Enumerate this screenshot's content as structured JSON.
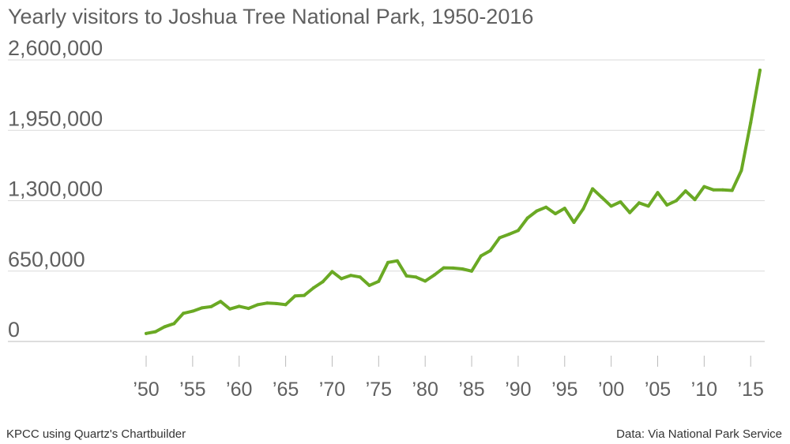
{
  "chart_data": {
    "type": "line",
    "title": "Yearly visitors to Joshua Tree National Park, 1950-2016",
    "xlabel": "",
    "ylabel": "",
    "ylim": [
      0,
      2600000
    ],
    "yticks": [
      {
        "value": 0,
        "label": "0"
      },
      {
        "value": 650000,
        "label": "650,000"
      },
      {
        "value": 1300000,
        "label": "1,300,000"
      },
      {
        "value": 1950000,
        "label": "1,950,000"
      },
      {
        "value": 2600000,
        "label": "2,600,000"
      }
    ],
    "xlim": [
      1950,
      2016
    ],
    "xticks": [
      {
        "value": 1950,
        "label": "’50"
      },
      {
        "value": 1955,
        "label": "’55"
      },
      {
        "value": 1960,
        "label": "’60"
      },
      {
        "value": 1965,
        "label": "’65"
      },
      {
        "value": 1970,
        "label": "’70"
      },
      {
        "value": 1975,
        "label": "’75"
      },
      {
        "value": 1980,
        "label": "’80"
      },
      {
        "value": 1985,
        "label": "’85"
      },
      {
        "value": 1990,
        "label": "’90"
      },
      {
        "value": 1995,
        "label": "’95"
      },
      {
        "value": 2000,
        "label": "’00"
      },
      {
        "value": 2005,
        "label": "’05"
      },
      {
        "value": 2010,
        "label": "’10"
      },
      {
        "value": 2015,
        "label": "’15"
      }
    ],
    "grid": true,
    "color": "#6aa924",
    "x": [
      1950,
      1951,
      1952,
      1953,
      1954,
      1955,
      1956,
      1957,
      1958,
      1959,
      1960,
      1961,
      1962,
      1963,
      1964,
      1965,
      1966,
      1967,
      1968,
      1969,
      1970,
      1971,
      1972,
      1973,
      1974,
      1975,
      1976,
      1977,
      1978,
      1979,
      1980,
      1981,
      1982,
      1983,
      1984,
      1985,
      1986,
      1987,
      1988,
      1989,
      1990,
      1991,
      1992,
      1993,
      1994,
      1995,
      1996,
      1997,
      1998,
      1999,
      2000,
      2001,
      2002,
      2003,
      2004,
      2005,
      2006,
      2007,
      2008,
      2009,
      2010,
      2011,
      2012,
      2013,
      2014,
      2015,
      2016
    ],
    "values": [
      74000,
      90000,
      136000,
      165000,
      260000,
      280000,
      310000,
      322000,
      370000,
      300000,
      325000,
      305000,
      340000,
      355000,
      350000,
      340000,
      420000,
      425000,
      495000,
      552000,
      645000,
      580000,
      610000,
      595000,
      518000,
      555000,
      730000,
      745000,
      605000,
      595000,
      558000,
      615000,
      680000,
      678000,
      670000,
      650000,
      790000,
      838000,
      958000,
      990000,
      1025000,
      1140000,
      1205000,
      1240000,
      1180000,
      1230000,
      1100000,
      1225000,
      1410000,
      1330000,
      1250000,
      1290000,
      1190000,
      1280000,
      1250000,
      1375000,
      1260000,
      1300000,
      1390000,
      1310000,
      1430000,
      1400000,
      1400000,
      1395000,
      1580000,
      2020000,
      2505000
    ]
  },
  "footer": {
    "left": "KPCC using Quartz's Chartbuilder",
    "right": "Data: Via National Park Service"
  }
}
